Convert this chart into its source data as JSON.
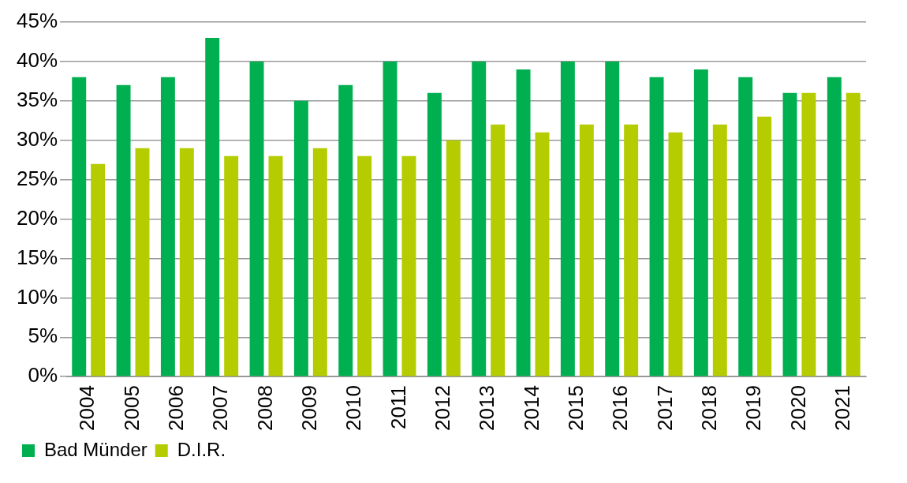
{
  "chart_data": {
    "type": "bar",
    "categories": [
      "2004",
      "2005",
      "2006",
      "2007",
      "2008",
      "2009",
      "2010",
      "2011",
      "2012",
      "2013",
      "2014",
      "2015",
      "2016",
      "2017",
      "2018",
      "2019",
      "2020",
      "2021"
    ],
    "series": [
      {
        "name": "Bad Münder",
        "color": "#00b050",
        "values": [
          38,
          37,
          38,
          43,
          40,
          35,
          37,
          40,
          36,
          40,
          39,
          40,
          40,
          38,
          39,
          38,
          36,
          38
        ]
      },
      {
        "name": "D.I.R.",
        "color": "#b4cc00",
        "values": [
          27,
          29,
          29,
          28,
          28,
          29,
          28,
          28,
          30,
          32,
          31,
          32,
          32,
          31,
          32,
          33,
          36,
          36
        ]
      }
    ],
    "ylim": [
      0,
      45
    ],
    "yticks": [
      {
        "value": 0,
        "label": "0%"
      },
      {
        "value": 5,
        "label": "5%"
      },
      {
        "value": 10,
        "label": "10%"
      },
      {
        "value": 15,
        "label": "15%"
      },
      {
        "value": 20,
        "label": "20%"
      },
      {
        "value": 25,
        "label": "25%"
      },
      {
        "value": 30,
        "label": "30%"
      },
      {
        "value": 35,
        "label": "35%"
      },
      {
        "value": 40,
        "label": "40%"
      },
      {
        "value": 45,
        "label": "45%"
      }
    ],
    "grid": "y",
    "legend": "bottom left"
  }
}
